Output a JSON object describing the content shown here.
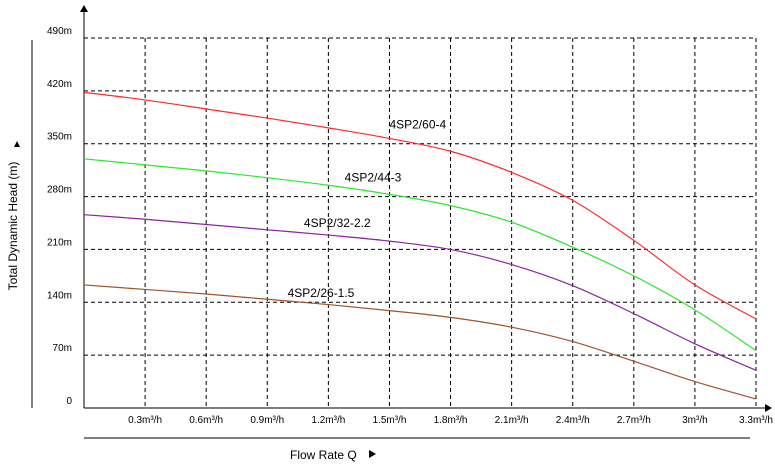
{
  "chart_data": {
    "type": "line",
    "title": "",
    "xlabel": "Flow Rate Q",
    "ylabel": "Total Dynamic Head (m)",
    "x_ticks": [
      "0.3m³/h",
      "0.6m³/h",
      "0.9m³/h",
      "1.2m³/h",
      "1.5m³/h",
      "1.8m³/h",
      "2.1m³/h",
      "2.4m³/h",
      "2.7m³/h",
      "3m³/h",
      "3.3m³/h"
    ],
    "y_ticks": [
      "0",
      "70m",
      "140m",
      "210m",
      "280m",
      "350m",
      "420m",
      "490m"
    ],
    "xlim": [
      0,
      3.3
    ],
    "ylim": [
      0,
      490
    ],
    "grid": true,
    "series": [
      {
        "name": "4SP2/60-4",
        "color": "#ff2a2a",
        "x": [
          0,
          0.3,
          0.6,
          0.9,
          1.2,
          1.5,
          1.8,
          2.1,
          2.4,
          2.7,
          3.0,
          3.3
        ],
        "y": [
          418,
          408,
          396,
          384,
          371,
          357,
          340,
          312,
          275,
          222,
          163,
          118
        ]
      },
      {
        "name": "4SP2/44-3",
        "color": "#2ee62e",
        "x": [
          0,
          0.3,
          0.6,
          0.9,
          1.2,
          1.5,
          1.8,
          2.1,
          2.4,
          2.7,
          3.0,
          3.3
        ],
        "y": [
          330,
          322,
          314,
          305,
          295,
          283,
          268,
          246,
          213,
          175,
          130,
          76
        ]
      },
      {
        "name": "4SP2/32-2.2",
        "color": "#8b22a0",
        "x": [
          0,
          0.3,
          0.6,
          0.9,
          1.2,
          1.5,
          1.8,
          2.1,
          2.4,
          2.7,
          3.0,
          3.3
        ],
        "y": [
          256,
          250,
          243,
          236,
          229,
          221,
          210,
          190,
          162,
          125,
          85,
          50
        ]
      },
      {
        "name": "4SP2/26-1.5",
        "color": "#a0522d",
        "x": [
          0,
          0.3,
          0.6,
          0.9,
          1.2,
          1.5,
          1.8,
          2.1,
          2.4,
          2.7,
          3.0,
          3.3
        ],
        "y": [
          163,
          157,
          151,
          144,
          137,
          129,
          120,
          107,
          88,
          62,
          35,
          12
        ]
      }
    ]
  }
}
